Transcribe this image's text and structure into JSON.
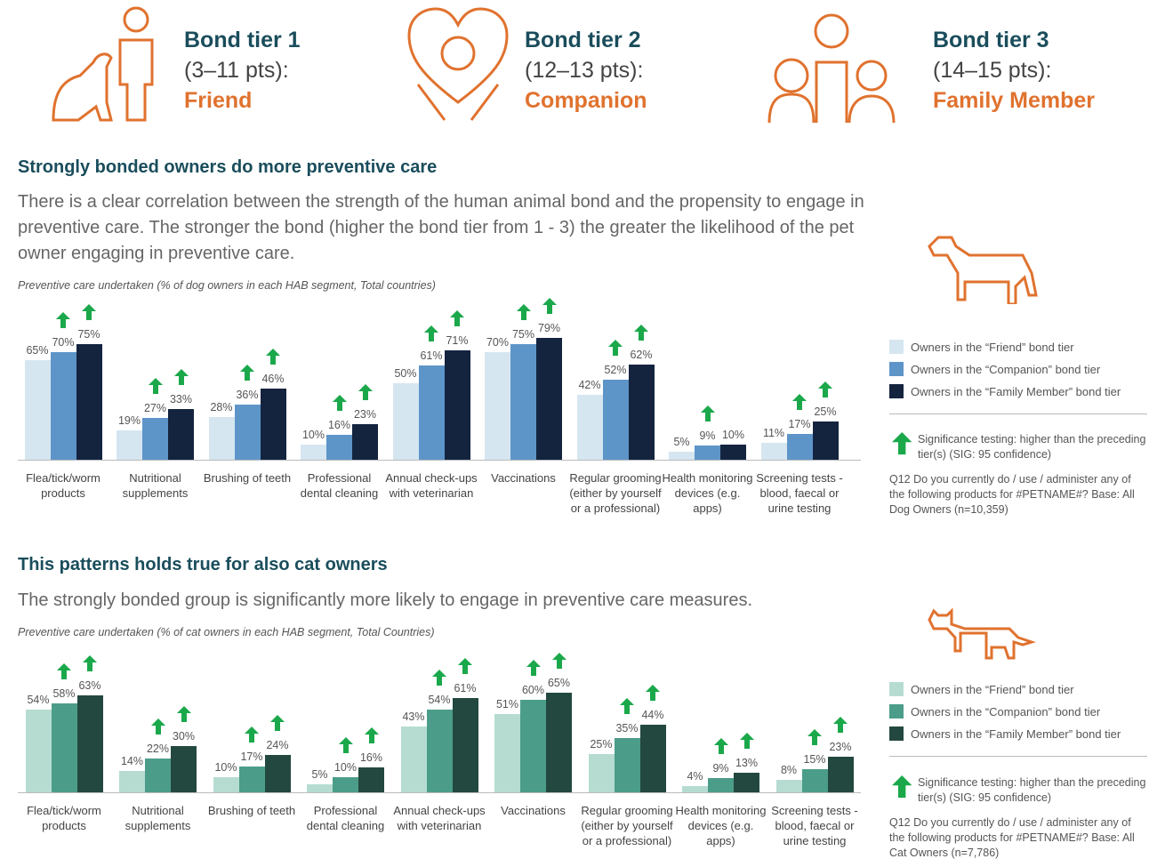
{
  "tiers": [
    {
      "title": "Bond tier 1",
      "range": "(3–11 pts):",
      "name": "Friend"
    },
    {
      "title": "Bond tier 2",
      "range": "(12–13 pts):",
      "name": "Companion"
    },
    {
      "title": "Bond tier 3",
      "range": "(14–15 pts):",
      "name": "Family Member"
    }
  ],
  "chart_data": [
    {
      "type": "bar",
      "heading": "Strongly bonded owners do more preventive care",
      "description": "There is a clear correlation between the strength of the human animal bond and the propensity to engage in preventive care. The stronger the bond (higher the bond tier from 1 - 3) the greater the likelihood of the pet owner engaging in preventive care.",
      "title": "Preventive care undertaken (% of dog owners in each HAB segment, Total countries)",
      "categories": [
        "Flea/tick/worm products",
        "Nutritional supplements",
        "Brushing of teeth",
        "Professional dental cleaning",
        "Annual check-ups with veterinarian",
        "Vaccinations",
        "Regular grooming (either by yourself or a professional)",
        "Health monitoring devices (e.g. apps)",
        "Screening tests - blood, faecal or urine testing"
      ],
      "ylim": [
        0,
        100
      ],
      "series": [
        {
          "name": "Owners in the “Friend” bond tier",
          "color": "#d5e6f1",
          "values": [
            65,
            19,
            28,
            10,
            50,
            70,
            42,
            5,
            11
          ],
          "value_labels": [
            "65%",
            "19%",
            "28%",
            "10%",
            "50%",
            "70%",
            "42%",
            "5%",
            "11%"
          ],
          "significant": [
            false,
            false,
            false,
            false,
            false,
            false,
            false,
            false,
            false
          ]
        },
        {
          "name": "Owners in the “Companion” bond tier",
          "color": "#5e95c9",
          "values": [
            70,
            27,
            36,
            16,
            61,
            75,
            52,
            9,
            17
          ],
          "value_labels": [
            "70%",
            "27%",
            "36%",
            "16%",
            "61%",
            "75%",
            "52%",
            "9%",
            "17%"
          ],
          "significant": [
            true,
            true,
            true,
            true,
            true,
            true,
            true,
            true,
            true
          ]
        },
        {
          "name": "Owners in the “Family Member” bond tier",
          "color": "#14243f",
          "values": [
            75,
            33,
            46,
            23,
            71,
            79,
            62,
            10,
            25
          ],
          "value_labels": [
            "75%",
            "33%",
            "46%",
            "23%",
            "71%",
            "79%",
            "62%",
            "10%",
            "25%"
          ],
          "significant": [
            true,
            true,
            true,
            true,
            true,
            true,
            true,
            false,
            true
          ]
        }
      ],
      "significance_note": "Significance testing: higher than the preceding tier(s) (SIG: 95 confidence)",
      "question": "Q12 Do you currently do / use / administer any of the following products for #PETNAME#? Base: All Dog Owners (n=10,359)"
    },
    {
      "type": "bar",
      "heading": "This patterns holds true for also cat owners",
      "description": "The strongly bonded group is significantly more likely to engage in preventive care measures.",
      "title": "Preventive care undertaken (% of cat owners in each HAB segment, Total Countries)",
      "categories": [
        "Flea/tick/worm products",
        "Nutritional supplements",
        "Brushing of teeth",
        "Professional dental cleaning",
        "Annual check-ups with veterinarian",
        "Vaccinations",
        "Regular grooming (either by yourself or a professional)",
        "Health monitoring devices (e.g. apps)",
        "Screening tests - blood, faecal or urine testing"
      ],
      "ylim": [
        0,
        100
      ],
      "series": [
        {
          "name": "Owners in the “Friend” bond tier",
          "color": "#b6dcd2",
          "values": [
            54,
            14,
            10,
            5,
            43,
            51,
            25,
            4,
            8
          ],
          "value_labels": [
            "54%",
            "14%",
            "10%",
            "5%",
            "43%",
            "51%",
            "25%",
            "4%",
            "8%"
          ],
          "significant": [
            false,
            false,
            false,
            false,
            false,
            false,
            false,
            false,
            false
          ]
        },
        {
          "name": "Owners in the “Companion” bond tier",
          "color": "#4b9d89",
          "values": [
            58,
            22,
            17,
            10,
            54,
            60,
            35,
            9,
            15
          ],
          "value_labels": [
            "58%",
            "22%",
            "17%",
            "10%",
            "54%",
            "60%",
            "35%",
            "9%",
            "15%"
          ],
          "significant": [
            true,
            true,
            true,
            true,
            true,
            true,
            true,
            true,
            true
          ]
        },
        {
          "name": "Owners in the “Family Member” bond tier",
          "color": "#23483f",
          "values": [
            63,
            30,
            24,
            16,
            61,
            65,
            44,
            13,
            23
          ],
          "value_labels": [
            "63%",
            "30%",
            "24%",
            "16%",
            "61%",
            "65%",
            "44%",
            "13%",
            "23%"
          ],
          "significant": [
            true,
            true,
            true,
            true,
            true,
            true,
            true,
            true,
            true
          ]
        }
      ],
      "significance_note": "Significance testing: higher than the preceding tier(s) (SIG: 95 confidence)",
      "question": "Q12 Do you currently do / use / administer any of the following products for #PETNAME#? Base: All Cat Owners (n=7,786)"
    }
  ]
}
